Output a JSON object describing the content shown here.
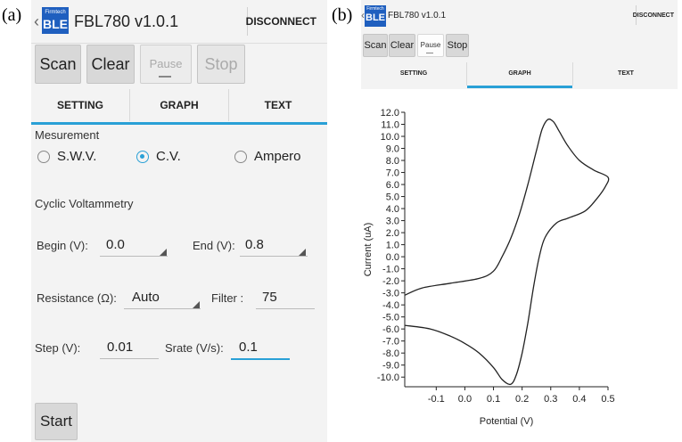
{
  "labels": {
    "a": "(a)",
    "b": "(b)"
  },
  "app": {
    "logo_small": "Firmtech",
    "logo_big": "BLE",
    "title": "FBL780 v1.0.1",
    "disconnect": "DISCONNECT"
  },
  "toolbar": {
    "scan": "Scan",
    "clear": "Clear",
    "pause": "Pause",
    "stop": "Stop"
  },
  "tabs": [
    {
      "label": "SETTING"
    },
    {
      "label": "GRAPH"
    },
    {
      "label": "TEXT"
    }
  ],
  "active_tab": {
    "panel_a": "SETTING",
    "panel_b": "GRAPH"
  },
  "colors": {
    "accent": "#29a0d6",
    "logo_bg": "#1f5fbf"
  },
  "icons": {
    "back": "chevron-left-icon",
    "spinner": "dropdown-corner-icon"
  },
  "settings": {
    "measurement_label": "Mesurement",
    "modes": [
      {
        "label": "S.W.V.",
        "selected": false
      },
      {
        "label": "C.V.",
        "selected": true
      },
      {
        "label": "Ampero",
        "selected": false
      }
    ],
    "section_title": "Cyclic Voltammetry",
    "begin_label": "Begin (V):",
    "begin_value": "0.0",
    "end_label": "End (V):",
    "end_value": "0.8",
    "resistance_label": "Resistance (Ω):",
    "resistance_value": "Auto",
    "filter_label": "Filter :",
    "filter_value": "75",
    "step_label": "Step (V):",
    "step_value": "0.01",
    "srate_label": "Srate (V/s):",
    "srate_value": "0.1",
    "start": "Start"
  },
  "chart_data": {
    "type": "line",
    "xlabel": "Potential (V)",
    "ylabel": "Current (uA)",
    "xlim": [
      -0.21,
      0.5
    ],
    "ylim": [
      -10.8,
      12.0
    ],
    "x_ticks": [
      "-0.1",
      "0.0",
      "0.1",
      "0.2",
      "0.3",
      "0.4",
      "0.5"
    ],
    "y_ticks": [
      "12.0",
      "11.0",
      "10.0",
      "9.0",
      "8.0",
      "7.0",
      "6.0",
      "5.0",
      "4.0",
      "3.0",
      "2.0",
      "1.0",
      "0.0",
      "-1.0",
      "-2.0",
      "-3.0",
      "-4.0",
      "-5.0",
      "-6.0",
      "-7.0",
      "-8.0",
      "-9.0",
      "-10.0"
    ],
    "series": [
      {
        "points": [
          [
            -0.21,
            -3.2
          ],
          [
            -0.15,
            -2.6
          ],
          [
            -0.05,
            -2.2
          ],
          [
            0.05,
            -1.8
          ],
          [
            0.1,
            -1.2
          ],
          [
            0.13,
            0.0
          ],
          [
            0.16,
            1.5
          ],
          [
            0.19,
            3.5
          ],
          [
            0.22,
            6.0
          ],
          [
            0.25,
            8.8
          ],
          [
            0.27,
            10.6
          ],
          [
            0.29,
            11.4
          ],
          [
            0.31,
            11.2
          ],
          [
            0.33,
            10.4
          ],
          [
            0.36,
            9.2
          ],
          [
            0.4,
            8.0
          ],
          [
            0.45,
            7.2
          ],
          [
            0.5,
            6.6
          ],
          [
            0.49,
            5.8
          ],
          [
            0.46,
            4.8
          ],
          [
            0.42,
            3.8
          ],
          [
            0.36,
            3.2
          ],
          [
            0.32,
            2.8
          ],
          [
            0.28,
            1.6
          ],
          [
            0.26,
            0.0
          ],
          [
            0.24,
            -2.5
          ],
          [
            0.22,
            -5.5
          ],
          [
            0.2,
            -8.0
          ],
          [
            0.18,
            -9.8
          ],
          [
            0.16,
            -10.6
          ],
          [
            0.13,
            -10.2
          ],
          [
            0.1,
            -9.2
          ],
          [
            0.05,
            -8.0
          ],
          [
            0.0,
            -7.2
          ],
          [
            -0.05,
            -6.6
          ],
          [
            -0.12,
            -6.0
          ],
          [
            -0.21,
            -5.7
          ]
        ]
      }
    ]
  }
}
